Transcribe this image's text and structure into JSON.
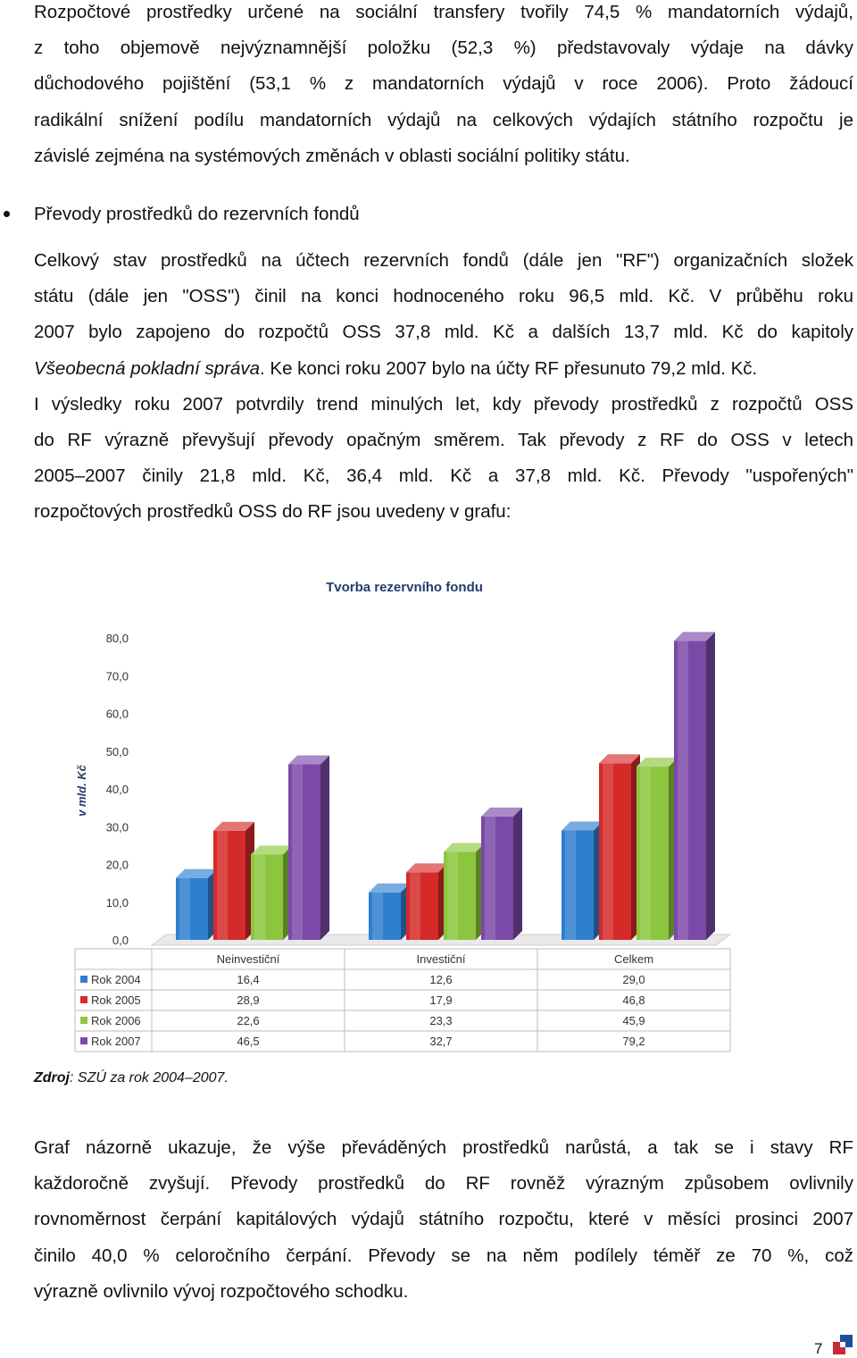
{
  "paragraph1": {
    "lines": [
      "Rozpočtové prostředky určené na sociální transfery tvořily 74,5 % mandatorních výdajů,",
      "z toho objemově nejvýznamnější položku (52,3 %) představovaly výdaje na dávky",
      "důchodového pojištění (53,1 % z mandatorních výdajů v roce 2006). Proto žádoucí",
      "radikální snížení podílu mandatorních výdajů na celkových výdajích státního rozpočtu je",
      "závislé zejména na systémových změnách v oblasti sociální politiky státu."
    ]
  },
  "bullet_heading": "Převody prostředků do rezervních fondů",
  "paragraph2": {
    "lines": [
      "Celkový stav prostředků na účtech rezervních fondů (dále jen \"RF\") organizačních složek",
      "státu (dále jen \"OSS\") činil na konci hodnoceného roku 96,5 mld. Kč. V průběhu roku",
      "2007 bylo zapojeno do rozpočtů OSS 37,8 mld. Kč a dalších 13,7 mld. Kč do kapitoly"
    ],
    "italic_part": "Všeobecná pokladní správa",
    "after_italic": ". Ke konci roku 2007 bylo na účty RF přesunuto 79,2 mld. Kč.",
    "lines_after": [
      "I výsledky roku 2007 potvrdily trend minulých let, kdy převody prostředků z rozpočtů OSS",
      "do RF výrazně převyšují převody opačným směrem. Tak převody z RF do OSS v letech",
      "2005–2007 činily 21,8 mld. Kč, 36,4 mld. Kč a 37,8 mld. Kč. Převody \"uspořených\"",
      "rozpočtových prostředků OSS do RF jsou uvedeny v grafu:"
    ]
  },
  "chart_data": {
    "type": "bar",
    "title": "Tvorba rezervního fondu",
    "ylabel": "v mld. Kč",
    "ylim": [
      0,
      80
    ],
    "yticks": [
      "0,0",
      "10,0",
      "20,0",
      "30,0",
      "40,0",
      "50,0",
      "60,0",
      "70,0",
      "80,0"
    ],
    "categories": [
      "Neinvestiční",
      "Investiční",
      "Celkem"
    ],
    "series": [
      {
        "name": "Rok 2004",
        "values": [
          16.4,
          12.6,
          29.0
        ],
        "labels": [
          "16,4",
          "12,6",
          "29,0"
        ],
        "color": "#2f7fcf"
      },
      {
        "name": "Rok 2005",
        "values": [
          28.9,
          17.9,
          46.8
        ],
        "labels": [
          "28,9",
          "17,9",
          "46,8"
        ],
        "color": "#d42a2a"
      },
      {
        "name": "Rok 2006",
        "values": [
          22.6,
          23.3,
          45.9
        ],
        "labels": [
          "22,6",
          "23,3",
          "45,9"
        ],
        "color": "#8cc63e"
      },
      {
        "name": "Rok 2007",
        "values": [
          46.5,
          32.7,
          79.2
        ],
        "labels": [
          "46,5",
          "32,7",
          "79,2"
        ],
        "color": "#7b49a8"
      }
    ],
    "grid": false,
    "legend": "data-table-below"
  },
  "source": {
    "label": "Zdroj",
    "text": ": SZÚ za rok 2004–2007."
  },
  "paragraph3": {
    "lines": [
      "Graf názorně ukazuje, že výše převáděných prostředků narůstá, a tak se i stavy RF",
      "každoročně zvyšují. Převody prostředků do RF rovněž výrazným způsobem ovlivnily",
      "rovnoměrnost čerpání kapitálových výdajů státního rozpočtu, které v měsíci prosinci 2007",
      "činilo 40,0 % celoročního čerpání. Převody se na něm podílely téměř ze 70 %, což",
      "výrazně ovlivnilo vývoj rozpočtového schodku."
    ]
  },
  "page_number": "7"
}
